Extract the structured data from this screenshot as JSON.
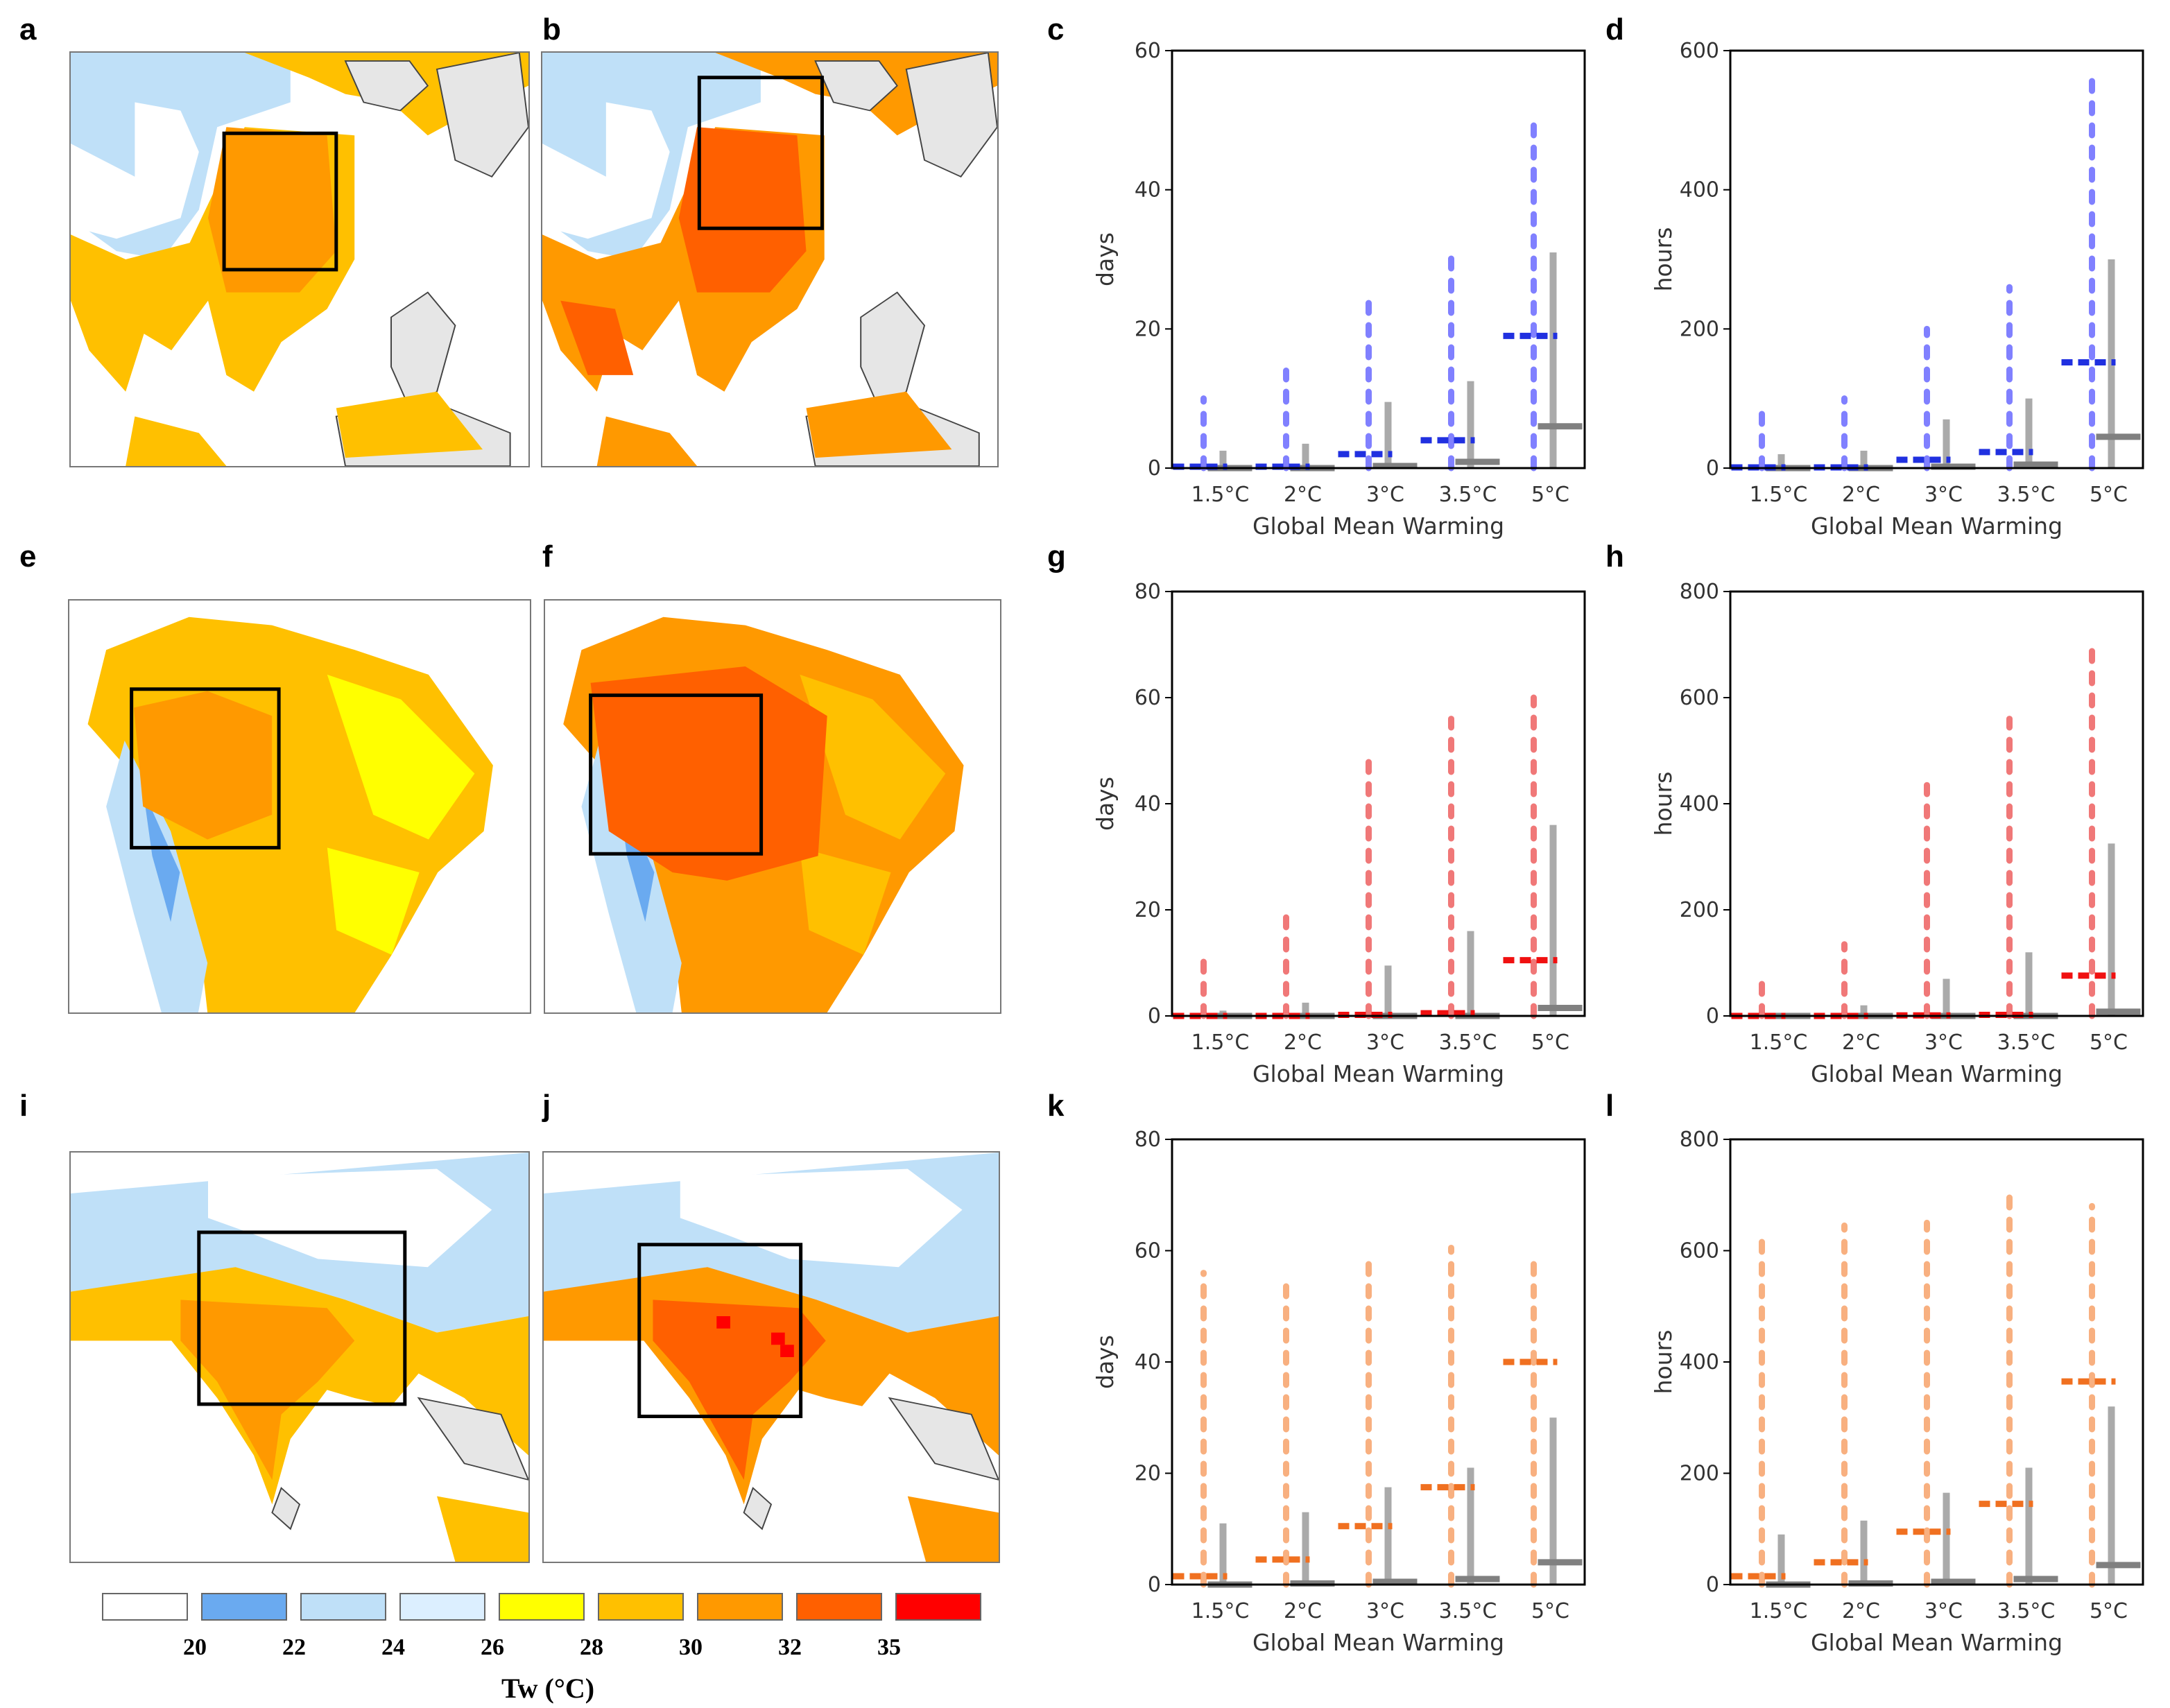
{
  "panels": {
    "a": "a",
    "b": "b",
    "c": "c",
    "d": "d",
    "e": "e",
    "f": "f",
    "g": "g",
    "h": "h",
    "i": "i",
    "j": "j",
    "k": "k",
    "l": "l"
  },
  "colorbar": {
    "title": "Tw (°C)",
    "labels": [
      "20",
      "22",
      "24",
      "26",
      "28",
      "30",
      "32",
      "35"
    ],
    "colors": [
      "#ffffff",
      "#6aaaf0",
      "#bfe0f8",
      "#dcefff",
      "#ffff00",
      "#ffc000",
      "#ff9900",
      "#ff6000",
      "#ff0000"
    ]
  },
  "map_colors": {
    "white": "#ffffff",
    "blue": "#6aaaf0",
    "light_blue": "#bfe0f8",
    "pale_blue": "#dcefff",
    "yellow": "#ffff00",
    "amber": "#ffc000",
    "orange": "#ff9900",
    "dark_orange": "#ff6000",
    "red": "#ff0000",
    "land_gray": "#e6e6e6"
  },
  "chart_data": [
    {
      "id": "c",
      "type": "scatter",
      "xlabel": "Global Mean Warming",
      "ylabel": "days",
      "ylim": [
        0,
        60
      ],
      "yticks": [
        "0",
        "20",
        "40",
        "60"
      ],
      "categories": [
        "1.5°C",
        "2°C",
        "3°C",
        "3.5°C",
        "5°C"
      ],
      "series": [
        {
          "name": "range_colored",
          "color": "#8080ff",
          "min": [
            0,
            0,
            0,
            0,
            0
          ],
          "max": [
            10,
            14,
            25,
            31,
            51
          ]
        },
        {
          "name": "median_colored",
          "color": "#2030e0",
          "values": [
            0.2,
            0.2,
            2,
            4,
            19
          ]
        },
        {
          "name": "range_gray",
          "color": "#aaaaaa",
          "min": [
            0,
            0,
            0,
            0,
            0
          ],
          "max": [
            2.5,
            3.5,
            9.5,
            12.5,
            31
          ]
        },
        {
          "name": "median_gray",
          "color": "#808080",
          "values": [
            0,
            0,
            0.3,
            0.9,
            6
          ]
        }
      ]
    },
    {
      "id": "d",
      "type": "scatter",
      "xlabel": "Global Mean Warming",
      "ylabel": "hours",
      "ylim": [
        0,
        600
      ],
      "yticks": [
        "0",
        "200",
        "400",
        "600"
      ],
      "categories": [
        "1.5°C",
        "2°C",
        "3°C",
        "3.5°C",
        "5°C"
      ],
      "series": [
        {
          "name": "range_colored",
          "color": "#8080ff",
          "min": [
            0,
            0,
            0,
            0,
            0
          ],
          "max": [
            90,
            100,
            200,
            260,
            570
          ]
        },
        {
          "name": "median_colored",
          "color": "#2030e0",
          "values": [
            1,
            1,
            12,
            23,
            152
          ]
        },
        {
          "name": "range_gray",
          "color": "#aaaaaa",
          "min": [
            0,
            0,
            0,
            0,
            0
          ],
          "max": [
            20,
            25,
            70,
            100,
            300
          ]
        },
        {
          "name": "median_gray",
          "color": "#808080",
          "values": [
            0,
            0,
            2,
            5,
            45
          ]
        }
      ]
    },
    {
      "id": "g",
      "type": "scatter",
      "xlabel": "Global Mean Warming",
      "ylabel": "days",
      "ylim": [
        0,
        80
      ],
      "yticks": [
        "0",
        "20",
        "40",
        "60",
        "80"
      ],
      "categories": [
        "1.5°C",
        "2°C",
        "3°C",
        "3.5°C",
        "5°C"
      ],
      "series": [
        {
          "name": "range_colored",
          "color": "#f07878",
          "min": [
            0,
            0,
            0,
            0,
            0
          ],
          "max": [
            12,
            19.5,
            49,
            56,
            60
          ]
        },
        {
          "name": "median_colored",
          "color": "#f01010",
          "values": [
            0,
            0,
            0.2,
            0.5,
            10.5
          ]
        },
        {
          "name": "range_gray",
          "color": "#aaaaaa",
          "min": [
            0,
            0,
            0,
            0,
            0
          ],
          "max": [
            1,
            2.5,
            9.5,
            16,
            36
          ]
        },
        {
          "name": "median_gray",
          "color": "#808080",
          "values": [
            0,
            0,
            0,
            0,
            1.5
          ]
        }
      ]
    },
    {
      "id": "h",
      "type": "scatter",
      "xlabel": "Global Mean Warming",
      "ylabel": "hours",
      "ylim": [
        0,
        800
      ],
      "yticks": [
        "0",
        "200",
        "400",
        "600",
        "800"
      ],
      "categories": [
        "1.5°C",
        "2°C",
        "3°C",
        "3.5°C",
        "5°C"
      ],
      "series": [
        {
          "name": "range_colored",
          "color": "#f07878",
          "min": [
            0,
            0,
            0,
            0,
            0
          ],
          "max": [
            75,
            135,
            435,
            560,
            690
          ]
        },
        {
          "name": "median_colored",
          "color": "#f01010",
          "values": [
            0,
            0,
            1,
            2,
            76
          ]
        },
        {
          "name": "range_gray",
          "color": "#aaaaaa",
          "min": [
            0,
            0,
            0,
            0,
            0
          ],
          "max": [
            5,
            20,
            70,
            120,
            325
          ]
        },
        {
          "name": "median_gray",
          "color": "#808080",
          "values": [
            0,
            0,
            0,
            0,
            8
          ]
        }
      ]
    },
    {
      "id": "k",
      "type": "scatter",
      "xlabel": "Global Mean Warming",
      "ylabel": "days",
      "ylim": [
        0,
        80
      ],
      "yticks": [
        "0",
        "20",
        "40",
        "60",
        "80"
      ],
      "categories": [
        "1.5°C",
        "2°C",
        "3°C",
        "3.5°C",
        "5°C"
      ],
      "series": [
        {
          "name": "range_colored",
          "color": "#f8b080",
          "min": [
            0,
            0,
            0,
            0,
            0
          ],
          "max": [
            56,
            54.5,
            59.5,
            60.5,
            59.5
          ]
        },
        {
          "name": "median_colored",
          "color": "#f07020",
          "values": [
            1.5,
            4.5,
            10.5,
            17.5,
            40
          ]
        },
        {
          "name": "range_gray",
          "color": "#aaaaaa",
          "min": [
            0,
            0,
            0,
            0,
            0
          ],
          "max": [
            11,
            13,
            17.5,
            21,
            30
          ]
        },
        {
          "name": "median_gray",
          "color": "#808080",
          "values": [
            0,
            0.2,
            0.5,
            1,
            4
          ]
        }
      ]
    },
    {
      "id": "l",
      "type": "scatter",
      "xlabel": "Global Mean Warming",
      "ylabel": "hours",
      "ylim": [
        0,
        800
      ],
      "yticks": [
        "0",
        "200",
        "400",
        "600",
        "800"
      ],
      "categories": [
        "1.5°C",
        "2°C",
        "3°C",
        "3.5°C",
        "5°C"
      ],
      "series": [
        {
          "name": "range_colored",
          "color": "#f8b080",
          "min": [
            0,
            0,
            0,
            0,
            0
          ],
          "max": [
            620,
            645,
            650,
            700,
            680
          ]
        },
        {
          "name": "median_colored",
          "color": "#f07020",
          "values": [
            15,
            40,
            95,
            145,
            365
          ]
        },
        {
          "name": "range_gray",
          "color": "#aaaaaa",
          "min": [
            0,
            0,
            0,
            0,
            0
          ],
          "max": [
            90,
            115,
            165,
            210,
            320
          ]
        },
        {
          "name": "median_gray",
          "color": "#808080",
          "values": [
            0,
            2,
            5,
            10,
            35
          ]
        }
      ]
    }
  ]
}
